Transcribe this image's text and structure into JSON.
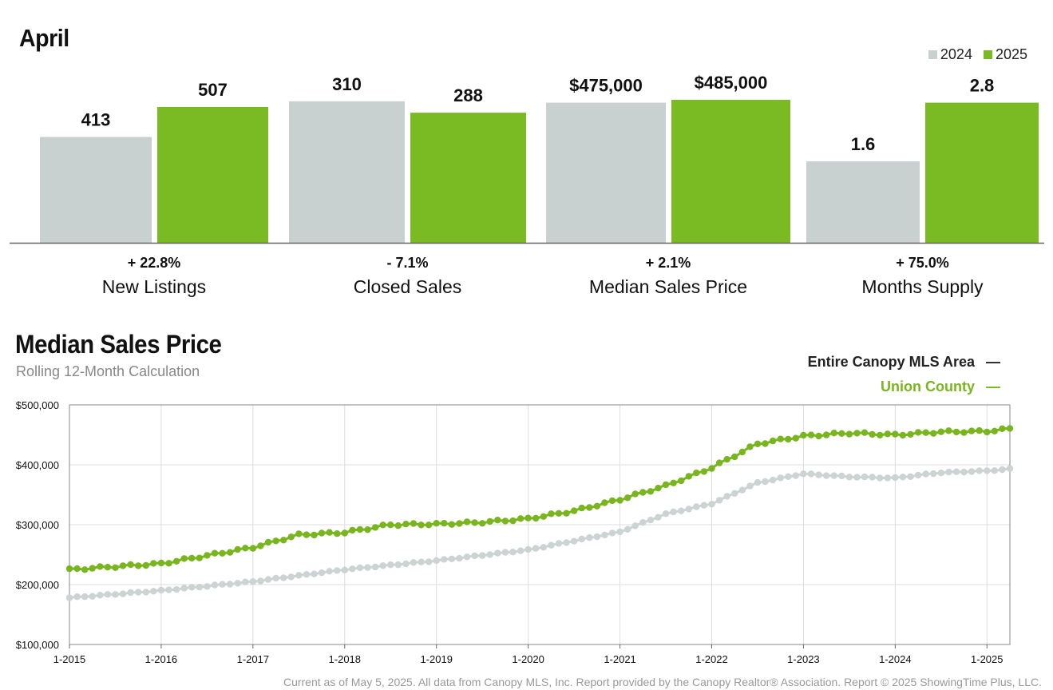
{
  "colors": {
    "y2024": "#c8d0d0",
    "y2025": "#7aba22",
    "mls_line": "#ccd3d3",
    "union_line": "#78b51f",
    "grid": "#dddddd",
    "axis": "#666666"
  },
  "bar_section": {
    "title": "April",
    "legend": [
      "2024",
      "2025"
    ]
  },
  "line_section": {
    "title": "Median Sales Price",
    "subtitle": "Rolling 12-Month Calculation",
    "legend": [
      {
        "label": "Entire Canopy MLS Area",
        "marker": "—"
      },
      {
        "label": "Union County",
        "marker": "—"
      }
    ]
  },
  "footer": "Current as of May 5, 2025. All data from Canopy MLS, Inc. Report provided by the Canopy Realtor® Association. Report © 2025 ShowingTime Plus, LLC.",
  "chart_data": [
    {
      "type": "bar",
      "title": "April",
      "series_names": [
        "2024",
        "2025"
      ],
      "groups": [
        {
          "name": "New Listings",
          "change": "+ 22.8%",
          "values": [
            413,
            507
          ],
          "labels": [
            "413",
            "507"
          ],
          "heights_rel": [
            0.74,
            0.95
          ]
        },
        {
          "name": "Closed Sales",
          "change": "- 7.1%",
          "values": [
            310,
            288
          ],
          "labels": [
            "310",
            "288"
          ],
          "heights_rel": [
            0.99,
            0.91
          ]
        },
        {
          "name": "Median Sales Price",
          "change": "+ 2.1%",
          "values": [
            475000,
            485000
          ],
          "labels": [
            "$475,000",
            "$485,000"
          ],
          "heights_rel": [
            0.98,
            1.0
          ]
        },
        {
          "name": "Months Supply",
          "change": "+ 75.0%",
          "values": [
            1.6,
            2.8
          ],
          "labels": [
            "1.6",
            "2.8"
          ],
          "heights_rel": [
            0.57,
            0.98
          ]
        }
      ]
    },
    {
      "type": "line",
      "title": "Median Sales Price",
      "subtitle": "Rolling 12-Month Calculation",
      "ylim": [
        100000,
        500000
      ],
      "yticks": [
        "$100,000",
        "$200,000",
        "$300,000",
        "$400,000",
        "$500,000"
      ],
      "ytick_values": [
        100000,
        200000,
        300000,
        400000,
        500000
      ],
      "xticks": [
        "1-2015",
        "1-2016",
        "1-2017",
        "1-2018",
        "1-2019",
        "1-2020",
        "1-2021",
        "1-2022",
        "1-2023",
        "1-2024",
        "1-2025"
      ],
      "x_start": "1-2015",
      "x_end": "4-2025",
      "series": [
        {
          "name": "Entire Canopy MLS Area",
          "anchors": [
            [
              "1-2015",
              178000
            ],
            [
              "1-2016",
              190000
            ],
            [
              "1-2017",
              205000
            ],
            [
              "1-2018",
              225000
            ],
            [
              "1-2019",
              240000
            ],
            [
              "1-2020",
              258000
            ],
            [
              "1-2021",
              288000
            ],
            [
              "7-2021",
              318000
            ],
            [
              "1-2022",
              335000
            ],
            [
              "7-2022",
              370000
            ],
            [
              "1-2023",
              385000
            ],
            [
              "7-2023",
              380000
            ],
            [
              "1-2024",
              378000
            ],
            [
              "7-2024",
              387000
            ],
            [
              "1-2025",
              390000
            ],
            [
              "4-2025",
              393000
            ]
          ]
        },
        {
          "name": "Union County",
          "anchors": [
            [
              "1-2015",
              225000
            ],
            [
              "7-2015",
              230000
            ],
            [
              "1-2016",
              235000
            ],
            [
              "1-2017",
              262000
            ],
            [
              "7-2017",
              283000
            ],
            [
              "1-2018",
              287000
            ],
            [
              "7-2018",
              300000
            ],
            [
              "1-2019",
              301000
            ],
            [
              "7-2019",
              304000
            ],
            [
              "1-2020",
              310000
            ],
            [
              "7-2020",
              323000
            ],
            [
              "1-2021",
              342000
            ],
            [
              "7-2021",
              365000
            ],
            [
              "1-2022",
              395000
            ],
            [
              "7-2022",
              435000
            ],
            [
              "1-2023",
              448000
            ],
            [
              "7-2023",
              453000
            ],
            [
              "1-2024",
              450000
            ],
            [
              "7-2024",
              455000
            ],
            [
              "1-2025",
              456000
            ],
            [
              "4-2025",
              460000
            ]
          ]
        }
      ]
    }
  ]
}
